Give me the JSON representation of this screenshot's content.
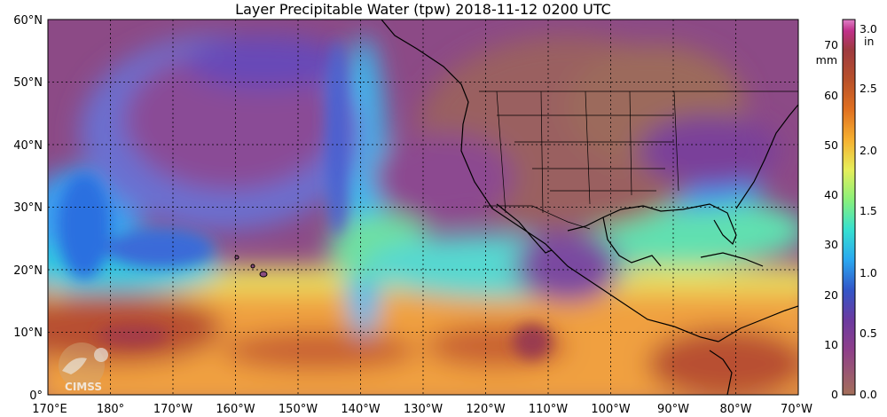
{
  "title": "Layer Precipitable Water (tpw)  2018-11-12 0200 UTC",
  "map": {
    "lat_labels": [
      "60°N",
      "50°N",
      "40°N",
      "30°N",
      "20°N",
      "10°N",
      "0°"
    ],
    "lon_labels": [
      "170°E",
      "180°",
      "170°W",
      "160°W",
      "150°W",
      "140°W",
      "130°W",
      "120°W",
      "110°W",
      "100°W",
      "90°W",
      "80°W",
      "70°W"
    ],
    "lat_range": [
      0,
      60
    ],
    "lon_range": [
      170,
      290
    ],
    "gridlines": true
  },
  "colorbar": {
    "mm_ticks": [
      "70",
      "60",
      "50",
      "40",
      "30",
      "20",
      "10",
      "0"
    ],
    "mm_unit": "mm",
    "in_ticks": [
      "3.0",
      "2.5",
      "2.0",
      "1.5",
      "1.0",
      "0.5",
      "0.0"
    ],
    "in_unit": "in",
    "colors": [
      "#a46f5a",
      "#8e3f8a",
      "#6b3aa0",
      "#3256c8",
      "#2aa8f0",
      "#36e0d0",
      "#8af07a",
      "#e6ee5a",
      "#f6b030",
      "#e07020",
      "#b8502a",
      "#9e3a40",
      "#c0308a",
      "#e080c8"
    ]
  },
  "logo": {
    "text": "CIMSS"
  }
}
